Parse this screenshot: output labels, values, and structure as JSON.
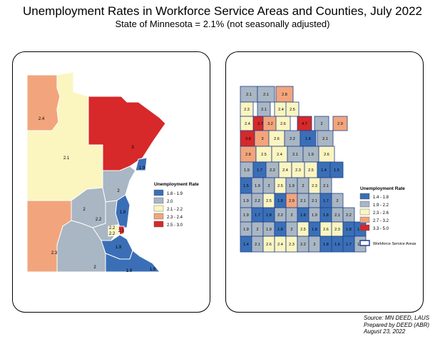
{
  "title": "Unemployment Rates in Workforce Service Areas and Counties, July 2022",
  "subtitle": "State of Minnesota = 2.1% (not seasonally adjusted)",
  "colors": {
    "c1": "#3a6fb7",
    "c2": "#a9b6c3",
    "c3": "#fbf5c0",
    "c4": "#f2a57c",
    "c5": "#d7282a",
    "border": "#1f3f8c"
  },
  "left_map": {
    "legend_title": "Unemployment Rate",
    "legend": [
      {
        "label": "1.8 - 1.9",
        "color": "c1"
      },
      {
        "label": "2.0",
        "color": "c2"
      },
      {
        "label": "2.1 - 2.2",
        "color": "c3"
      },
      {
        "label": "2.3 - 2.4",
        "color": "c4"
      },
      {
        "label": "2.5 - 3.0",
        "color": "c5"
      }
    ],
    "area_labels": [
      "2.4",
      "2.1",
      "3",
      "1.9",
      "2",
      "2",
      "1.8",
      "2.2",
      "2.2",
      "2.2",
      "2.3",
      "1.9",
      "2.3",
      "2",
      "1.9",
      "1.9"
    ]
  },
  "right_map": {
    "legend_title": "Unemployment Rate",
    "legend": [
      {
        "label": "1.4 - 1.8",
        "color": "c1"
      },
      {
        "label": "1.9 - 2.2",
        "color": "c2"
      },
      {
        "label": "2.3 - 2.6",
        "color": "c3"
      },
      {
        "label": "2.7 - 3.2",
        "color": "c4"
      },
      {
        "label": "3.3 - 5.0",
        "color": "c5"
      }
    ],
    "boundary_label": "Workforce Service Areas",
    "county_labels": [
      "2.1",
      "2.1",
      "2.8",
      "2.3",
      "2.1",
      "2.4",
      "2.5",
      "2.4",
      "3.7",
      "3.2",
      "2.6",
      "4.7",
      "2",
      "2.9",
      "3.8",
      "3",
      "2.6",
      "2.2",
      "1.8",
      "2.1",
      "2.8",
      "2.5",
      "2.4",
      "2.1",
      "1.9",
      "2.6",
      "1.9",
      "1.7",
      "2.2",
      "2.4",
      "2.3",
      "2.5",
      "1.4",
      "1.5",
      "1.5",
      "1.9",
      "2",
      "2.5",
      "1.9",
      "2",
      "2.3",
      "2.1",
      "1.9",
      "2.2",
      "2.5",
      "1.8",
      "2.9",
      "2.1",
      "2.1",
      "1.7",
      "2",
      "1.9",
      "1.7",
      "1.8",
      "2.2",
      "2",
      "1.8",
      "1.9",
      "1.8",
      "2.1",
      "2.2",
      "1.9",
      "2",
      "1.9",
      "1.8",
      "2",
      "2.5",
      "1.8",
      "2.6",
      "2.3",
      "1.8",
      "1.6",
      "1.4",
      "2.1",
      "2.6",
      "2.4",
      "2.3",
      "2.2",
      "2",
      "1.8",
      "1.6",
      "1.7",
      "1.9"
    ]
  },
  "source": {
    "line1": "Source: MN DEED, LAUS",
    "line2": "Prepared by DEED (ABR)",
    "line3": "August 23, 2022"
  }
}
